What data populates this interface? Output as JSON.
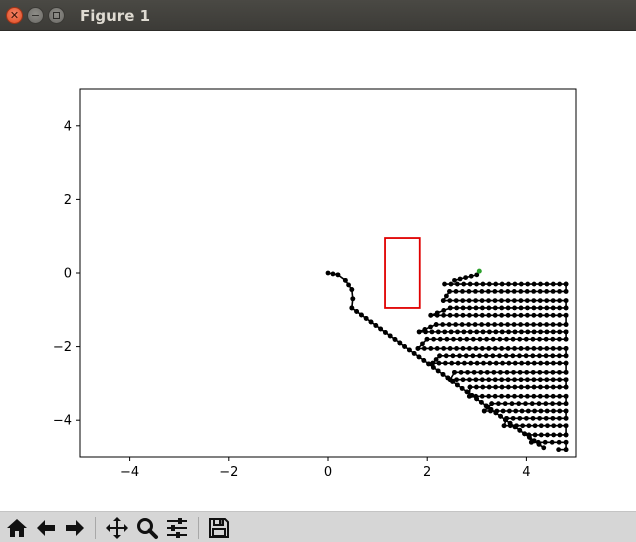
{
  "window": {
    "title": "Figure 1"
  },
  "toolbar": {
    "buttons": [
      {
        "name": "home-button",
        "icon": "home-icon"
      },
      {
        "name": "back-button",
        "icon": "arrow-left-icon"
      },
      {
        "name": "forward-button",
        "icon": "arrow-right-icon"
      },
      {
        "name": "pan-button",
        "icon": "move-icon"
      },
      {
        "name": "zoom-button",
        "icon": "magnifier-icon"
      },
      {
        "name": "configure-subplots-button",
        "icon": "sliders-icon"
      },
      {
        "name": "save-button",
        "icon": "floppy-disk-icon"
      }
    ]
  },
  "chart_data": {
    "type": "scatter",
    "title": "",
    "xlabel": "",
    "ylabel": "",
    "xlim": [
      -5,
      5
    ],
    "ylim": [
      -5,
      5
    ],
    "xticks": [
      -4,
      -2,
      0,
      2,
      4
    ],
    "yticks": [
      -4,
      -2,
      0,
      2,
      4
    ],
    "xtick_labels": [
      "−4",
      "−2",
      "0",
      "2",
      "4"
    ],
    "ytick_labels": [
      "−4",
      "−2",
      "0",
      "2",
      "4"
    ],
    "grid": false,
    "colors": {
      "path": "#000000",
      "obstacle": "#e00000",
      "goal": "#2ca02c"
    },
    "obstacle_rect": {
      "x": 1.15,
      "y": -0.95,
      "width": 0.7,
      "height": 1.9
    },
    "goal_marker": [
      3.05,
      0.05
    ],
    "path_start": [
      0,
      0
    ],
    "path_points_description_free": true,
    "segments": {
      "start_curve": [
        [
          0,
          0
        ],
        [
          0.2,
          -0.05
        ],
        [
          0.35,
          -0.2
        ],
        [
          0.48,
          -0.45
        ],
        [
          0.5,
          -0.7
        ],
        [
          0.48,
          -0.95
        ]
      ],
      "long_diagonal": [
        [
          0.48,
          -0.95
        ],
        [
          4.35,
          -4.75
        ]
      ],
      "top_start": [
        [
          2.55,
          -0.2
        ],
        [
          3.0,
          -0.05
        ]
      ],
      "rows_y": [
        -0.3,
        -0.5,
        -0.75,
        -0.95,
        -1.15,
        -1.4,
        -1.6,
        -1.8,
        -2.05,
        -2.25,
        -2.45,
        -2.7,
        -2.9,
        -3.1,
        -3.35,
        -3.55,
        -3.75,
        -3.95,
        -4.15,
        -4.4,
        -4.6,
        -4.8
      ],
      "right_x": 4.8,
      "left_edge": [
        [
          2.4,
          -0.2
        ],
        [
          3.15,
          -0.3
        ],
        [
          2.35,
          -0.7
        ],
        [
          2.25,
          -0.9
        ],
        [
          2.0,
          -1.25
        ],
        [
          1.7,
          -1.9
        ],
        [
          1.85,
          -2.1
        ],
        [
          2.05,
          -2.3
        ],
        [
          2.15,
          -2.55
        ],
        [
          2.35,
          -2.75
        ],
        [
          2.5,
          -2.95
        ],
        [
          2.65,
          -3.15
        ],
        [
          2.85,
          -3.35
        ],
        [
          3.05,
          -3.55
        ],
        [
          3.15,
          -3.75
        ],
        [
          3.35,
          -3.95
        ],
        [
          3.55,
          -4.15
        ],
        [
          3.75,
          -4.35
        ],
        [
          3.95,
          -4.55
        ],
        [
          4.1,
          -4.6
        ],
        [
          4.3,
          -4.65
        ],
        [
          4.4,
          -4.7
        ]
      ]
    }
  }
}
